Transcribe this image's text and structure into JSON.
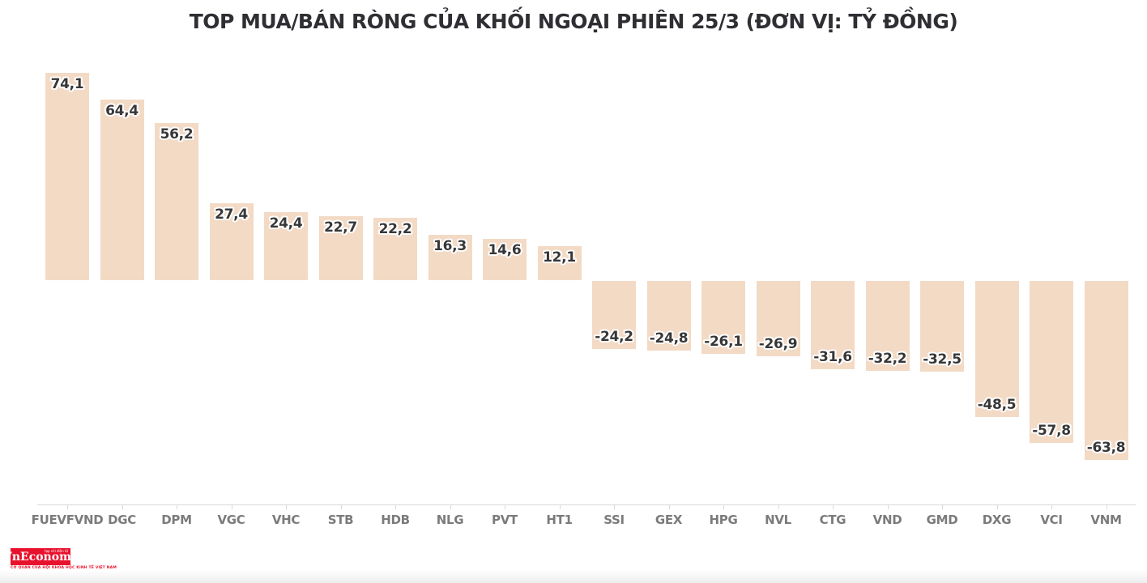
{
  "title": "TOP MUA/BÁN RÒNG CỦA KHỐI NGOẠI PHIÊN 25/3 (ĐƠN VỊ: TỶ ĐỒNG)",
  "chart_data": {
    "type": "bar",
    "title": "TOP MUA/BÁN RÒNG CỦA KHỐI NGOẠI PHIÊN 25/3 (ĐƠN VỊ: TỶ ĐỒNG)",
    "unit": "tỷ đồng",
    "categories": [
      "FUEVFVND",
      "DGC",
      "DPM",
      "VGC",
      "VHC",
      "STB",
      "HDB",
      "NLG",
      "PVT",
      "HT1",
      "SSI",
      "GEX",
      "HPG",
      "NVL",
      "CTG",
      "VND",
      "GMD",
      "DXG",
      "VCI",
      "VNM"
    ],
    "values": [
      74.1,
      64.4,
      56.2,
      27.4,
      24.4,
      22.7,
      22.2,
      16.3,
      14.6,
      12.1,
      -24.2,
      -24.8,
      -26.1,
      -26.9,
      -31.6,
      -32.2,
      -32.5,
      -48.5,
      -57.8,
      -63.8
    ],
    "decimal_separator": ",",
    "ylim": [
      -70,
      80
    ],
    "grid": false,
    "legend": "none",
    "bar_color": "#f3dac5",
    "value_label_color": "#373737",
    "axis_label_color": "#7b7b7b",
    "axis_line_color": "#d9d9d9",
    "title_color": "#2e2e33"
  },
  "footer": {
    "logo_text": "VnEconomy",
    "logo_top_text": "tạp chí điện tử",
    "logo_tagline": "CƠ QUAN CỦA HỘI KHOA HỌC KINH TẾ VIỆT NAM",
    "logo_color": "#e8112d"
  }
}
